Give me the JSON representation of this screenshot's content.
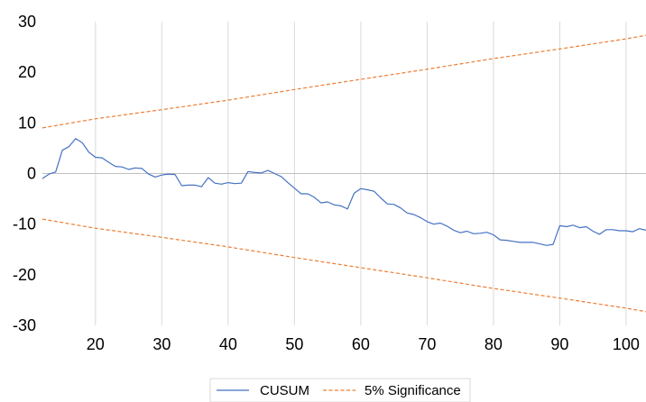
{
  "chart_data": {
    "type": "line",
    "title": "",
    "xlabel": "",
    "ylabel": "",
    "xlim": [
      12,
      103
    ],
    "ylim": [
      -30,
      30
    ],
    "x_ticks": [
      20,
      30,
      40,
      50,
      60,
      70,
      80,
      90,
      100
    ],
    "y_ticks": [
      -30,
      -20,
      -10,
      0,
      10,
      20,
      30
    ],
    "x_tick_labels": [
      "20",
      "30",
      "40",
      "50",
      "60",
      "70",
      "80",
      "90",
      "100"
    ],
    "y_tick_labels": [
      "-30",
      "-20",
      "-10",
      "0",
      "10",
      "20",
      "30"
    ],
    "grid": "vertical",
    "legend_position": "bottom-center",
    "series": [
      {
        "name": "CUSUM",
        "color": "#4472C4",
        "style": "solid",
        "x": [
          12,
          13,
          14,
          15,
          16,
          17,
          18,
          19,
          20,
          21,
          22,
          23,
          24,
          25,
          26,
          27,
          28,
          29,
          30,
          31,
          32,
          33,
          34,
          35,
          36,
          37,
          38,
          39,
          40,
          41,
          42,
          43,
          44,
          45,
          46,
          47,
          48,
          49,
          50,
          51,
          52,
          53,
          54,
          55,
          56,
          57,
          58,
          59,
          60,
          61,
          62,
          63,
          64,
          65,
          66,
          67,
          68,
          69,
          70,
          71,
          72,
          73,
          74,
          75,
          76,
          77,
          78,
          79,
          80,
          81,
          82,
          83,
          84,
          85,
          86,
          87,
          88,
          89,
          90,
          91,
          92,
          93,
          94,
          95,
          96,
          97,
          98,
          99,
          100,
          101,
          102,
          103
        ],
        "values": [
          -1.0,
          -0.1,
          0.3,
          4.6,
          5.3,
          6.9,
          6.1,
          4.2,
          3.2,
          3.1,
          2.2,
          1.4,
          1.3,
          0.8,
          1.1,
          1.0,
          -0.1,
          -0.7,
          -0.3,
          -0.1,
          -0.2,
          -2.4,
          -2.3,
          -2.3,
          -2.6,
          -0.8,
          -1.9,
          -2.1,
          -1.8,
          -2.0,
          -1.9,
          0.4,
          0.2,
          0.1,
          0.6,
          0.0,
          -0.6,
          -1.8,
          -2.9,
          -4.0,
          -4.0,
          -4.7,
          -5.8,
          -5.6,
          -6.2,
          -6.4,
          -7.0,
          -3.9,
          -3.0,
          -3.2,
          -3.5,
          -4.8,
          -6.0,
          -6.1,
          -6.8,
          -7.8,
          -8.1,
          -8.7,
          -9.5,
          -10.0,
          -9.8,
          -10.4,
          -11.2,
          -11.7,
          -11.4,
          -11.9,
          -11.8,
          -11.6,
          -12.1,
          -13.1,
          -13.2,
          -13.4,
          -13.6,
          -13.6,
          -13.6,
          -13.9,
          -14.2,
          -14.0,
          -10.3,
          -10.5,
          -10.2,
          -10.7,
          -10.5,
          -11.4,
          -12.0,
          -11.1,
          -11.1,
          -11.3,
          -11.3,
          -11.5,
          -10.9,
          -11.2
        ]
      },
      {
        "name": "5% Significance",
        "color": "#ED7D31",
        "style": "dashed",
        "x": [
          12,
          20,
          30,
          40,
          50,
          60,
          70,
          80,
          90,
          100,
          103
        ],
        "values": [
          9.0,
          10.8,
          12.6,
          14.5,
          16.6,
          18.6,
          20.6,
          22.7,
          24.6,
          26.6,
          27.3
        ]
      },
      {
        "name": "5% Significance",
        "color": "#ED7D31",
        "style": "dashed",
        "x": [
          12,
          20,
          30,
          40,
          50,
          60,
          70,
          80,
          90,
          100,
          103
        ],
        "values": [
          -9.0,
          -10.8,
          -12.6,
          -14.5,
          -16.6,
          -18.6,
          -20.6,
          -22.7,
          -24.6,
          -26.6,
          -27.3
        ]
      }
    ],
    "legend": [
      {
        "name": "CUSUM",
        "color": "#4472C4",
        "style": "solid"
      },
      {
        "name": "5% Significance",
        "color": "#ED7D31",
        "style": "dashed"
      }
    ]
  }
}
